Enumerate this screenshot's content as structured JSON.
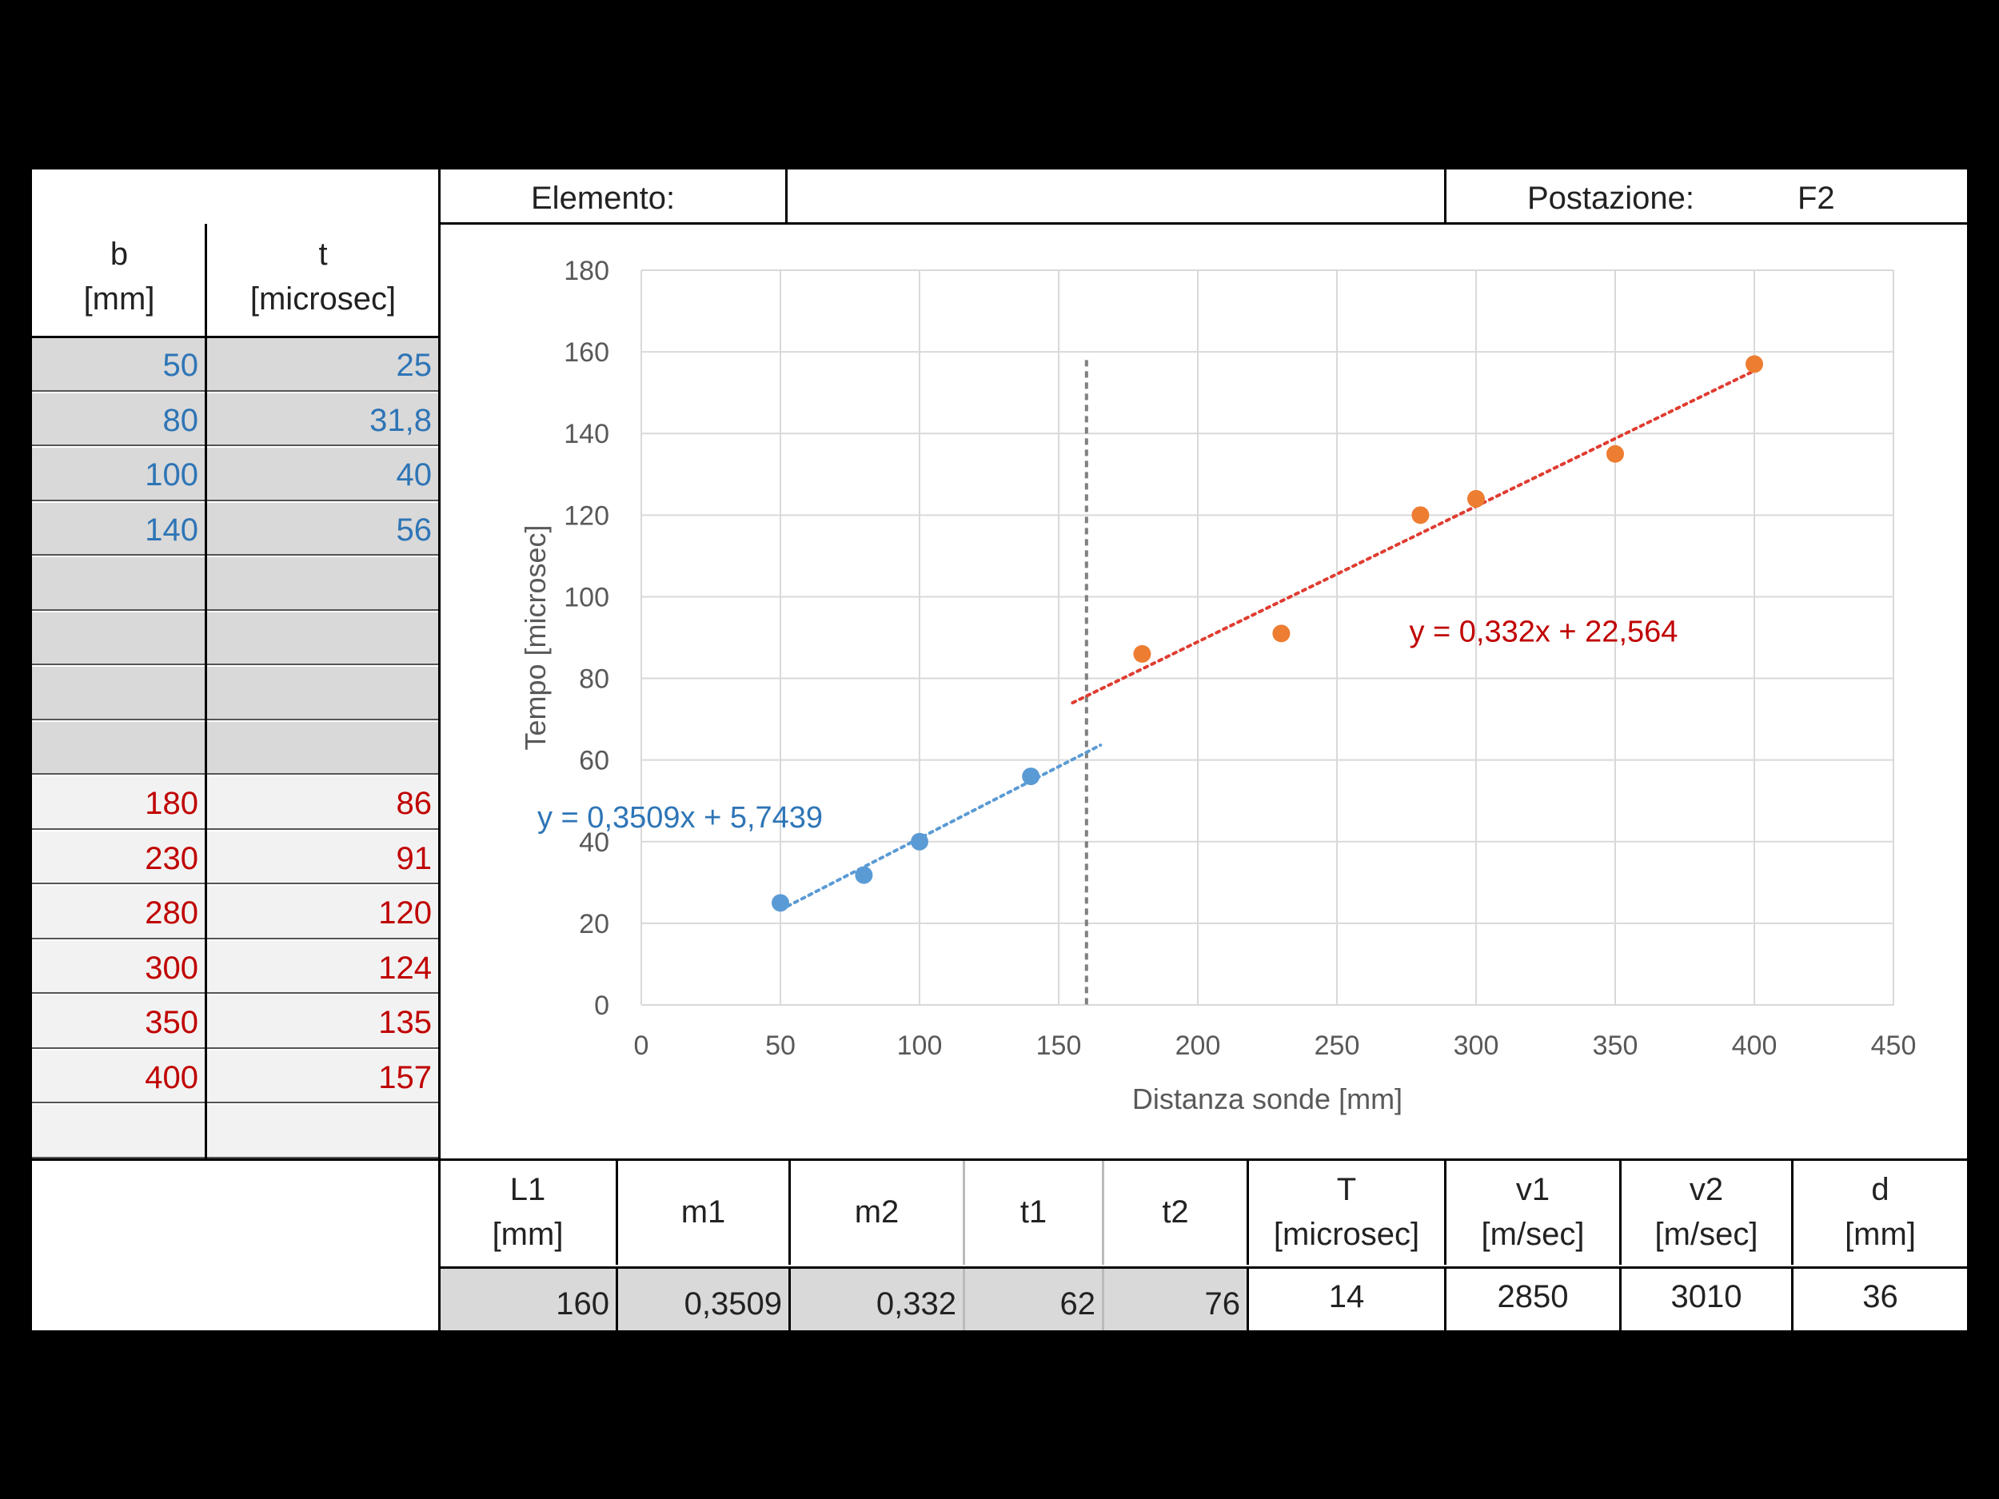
{
  "header": {
    "elemento_label": "Elemento:",
    "elemento_value": "",
    "postazione_label": "Postazione:",
    "postazione_value": "F2"
  },
  "data_table": {
    "col_b_label": "b",
    "col_b_unit": "[mm]",
    "col_t_label": "t",
    "col_t_unit": "[microsec]",
    "rows": [
      {
        "b": "50",
        "t": "25",
        "group": "1"
      },
      {
        "b": "80",
        "t": "31,8",
        "group": "1"
      },
      {
        "b": "100",
        "t": "40",
        "group": "1"
      },
      {
        "b": "140",
        "t": "56",
        "group": "1"
      },
      {
        "b": "",
        "t": "",
        "group": "1"
      },
      {
        "b": "",
        "t": "",
        "group": "1"
      },
      {
        "b": "",
        "t": "",
        "group": "1"
      },
      {
        "b": "",
        "t": "",
        "group": "1"
      },
      {
        "b": "180",
        "t": "86",
        "group": "2"
      },
      {
        "b": "230",
        "t": "91",
        "group": "2"
      },
      {
        "b": "280",
        "t": "120",
        "group": "2"
      },
      {
        "b": "300",
        "t": "124",
        "group": "2"
      },
      {
        "b": "350",
        "t": "135",
        "group": "2"
      },
      {
        "b": "400",
        "t": "157",
        "group": "2"
      },
      {
        "b": "",
        "t": "",
        "group": "2"
      }
    ]
  },
  "results": {
    "headers": [
      {
        "l1": "L1",
        "l2": "[mm]"
      },
      {
        "l1": "m1",
        "l2": ""
      },
      {
        "l1": "m2",
        "l2": ""
      },
      {
        "l1": "t1",
        "l2": ""
      },
      {
        "l1": "t2",
        "l2": ""
      },
      {
        "l1": "T",
        "l2": "[microsec]"
      },
      {
        "l1": "v1",
        "l2": "[m/sec]"
      },
      {
        "l1": "v2",
        "l2": "[m/sec]"
      },
      {
        "l1": "d",
        "l2": "[mm]"
      }
    ],
    "values": [
      "160",
      "0,3509",
      "0,332",
      "62",
      "76",
      "14",
      "2850",
      "3010",
      "36"
    ]
  },
  "colors": {
    "blue_text": "#2e75b6",
    "red_text": "#c00000",
    "series1": "#5b9bd5",
    "series2": "#ed7d31",
    "trend2": "#e03c31",
    "grey_cell": "#d9d9d9",
    "light_cell": "#f2f2f2"
  },
  "chart_data": {
    "type": "scatter",
    "xlabel": "Distanza sonde [mm]",
    "ylabel": "Tempo [microsec]",
    "xlim": [
      0,
      450
    ],
    "ylim": [
      0,
      180
    ],
    "x_ticks": [
      "0",
      "50",
      "100",
      "150",
      "200",
      "250",
      "300",
      "350",
      "400",
      "450"
    ],
    "y_ticks": [
      "0",
      "20",
      "40",
      "60",
      "80",
      "100",
      "120",
      "140",
      "160",
      "180"
    ],
    "grid": true,
    "series": [
      {
        "points": [
          [
            50,
            25
          ],
          [
            80,
            31.8
          ],
          [
            100,
            40
          ],
          [
            140,
            56
          ]
        ],
        "color": "#5b9bd5"
      },
      {
        "points": [
          [
            180,
            86
          ],
          [
            230,
            91
          ],
          [
            280,
            120
          ],
          [
            300,
            124
          ],
          [
            350,
            135
          ],
          [
            400,
            157
          ]
        ],
        "color": "#ed7d31"
      }
    ],
    "trendlines": [
      {
        "label": "y = 0,3509x + 5,7439",
        "slope": 0.3509,
        "intercept": 5.7439,
        "x_range": [
          50,
          165
        ],
        "color": "#5b9bd5"
      },
      {
        "label": "y = 0,332x + 22,564",
        "slope": 0.332,
        "intercept": 22.564,
        "x_range": [
          155,
          400
        ],
        "color": "#e03c31"
      }
    ],
    "vertical_marker": {
      "x": 160
    }
  }
}
